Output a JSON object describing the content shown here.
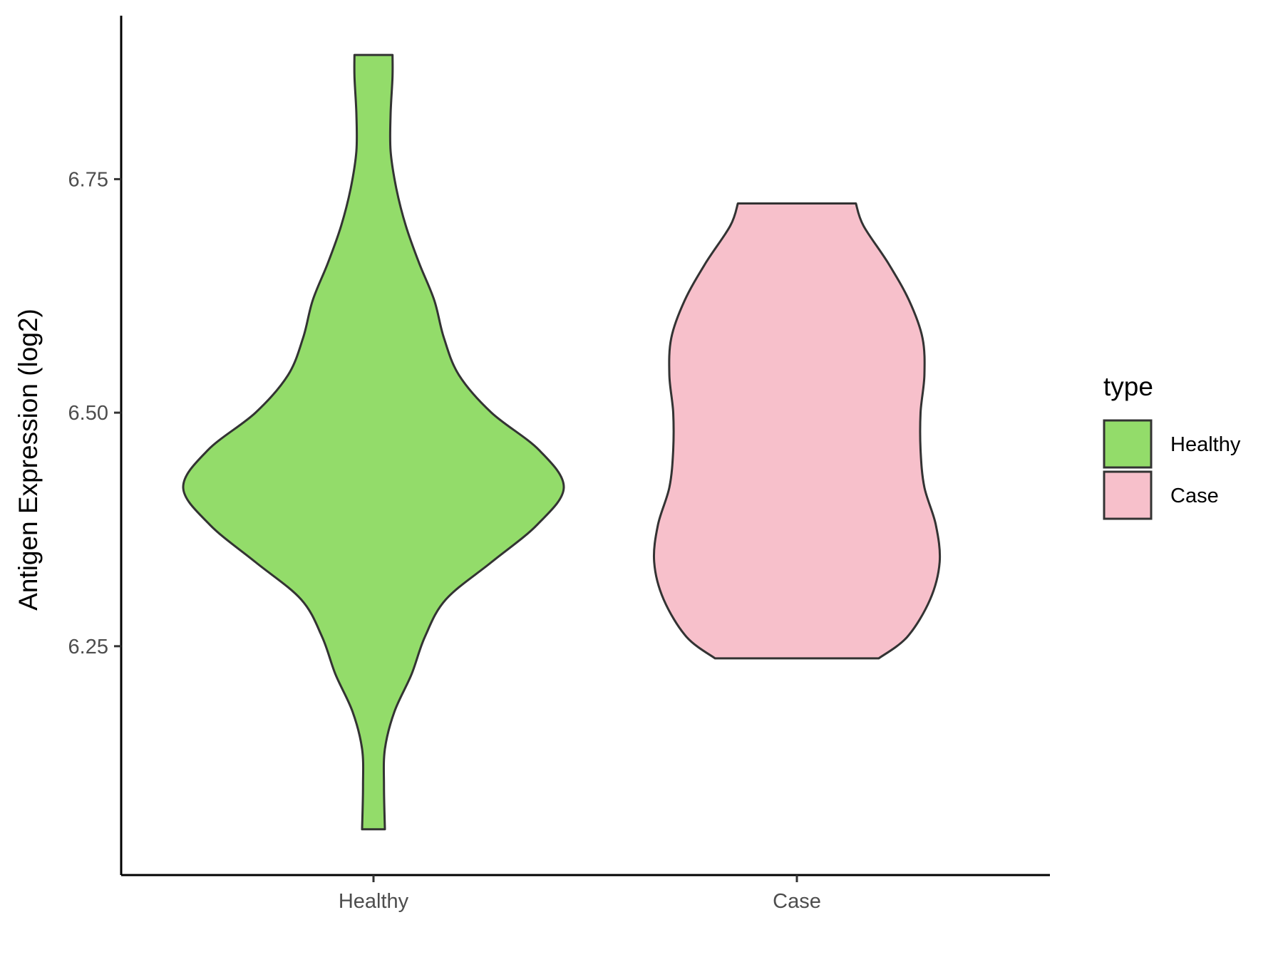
{
  "chart_data": {
    "type": "violin",
    "title": "",
    "xlabel": "",
    "ylabel": "Antigen Expression (log2)",
    "categories": [
      "Healthy",
      "Case"
    ],
    "ylim": [
      6.005,
      6.925
    ],
    "y_ticks": [
      6.25,
      6.5,
      6.75
    ],
    "y_tick_labels": [
      "6.25",
      "6.50",
      "6.75"
    ],
    "grid": false,
    "legend": {
      "title": "type",
      "placement": "right",
      "entries": [
        "Healthy",
        "Case"
      ]
    },
    "series": [
      {
        "name": "Healthy",
        "color": "#93dc6a",
        "min": 6.054,
        "max": 6.883,
        "density": [
          [
            6.054,
            0.06
          ],
          [
            6.1,
            0.055
          ],
          [
            6.14,
            0.06
          ],
          [
            6.18,
            0.11
          ],
          [
            6.22,
            0.2
          ],
          [
            6.26,
            0.27
          ],
          [
            6.3,
            0.38
          ],
          [
            6.34,
            0.62
          ],
          [
            6.38,
            0.86
          ],
          [
            6.42,
            1.0
          ],
          [
            6.46,
            0.87
          ],
          [
            6.5,
            0.62
          ],
          [
            6.54,
            0.45
          ],
          [
            6.58,
            0.37
          ],
          [
            6.62,
            0.32
          ],
          [
            6.66,
            0.24
          ],
          [
            6.7,
            0.17
          ],
          [
            6.74,
            0.12
          ],
          [
            6.78,
            0.09
          ],
          [
            6.82,
            0.09
          ],
          [
            6.86,
            0.1
          ],
          [
            6.883,
            0.1
          ]
        ]
      },
      {
        "name": "Case",
        "color": "#f7c0cb",
        "min": 6.237,
        "max": 6.724,
        "density": [
          [
            6.237,
            0.43
          ],
          [
            6.26,
            0.58
          ],
          [
            6.3,
            0.7
          ],
          [
            6.34,
            0.75
          ],
          [
            6.38,
            0.73
          ],
          [
            6.42,
            0.67
          ],
          [
            6.46,
            0.65
          ],
          [
            6.5,
            0.65
          ],
          [
            6.54,
            0.67
          ],
          [
            6.58,
            0.66
          ],
          [
            6.62,
            0.59
          ],
          [
            6.66,
            0.48
          ],
          [
            6.7,
            0.35
          ],
          [
            6.724,
            0.31
          ]
        ]
      }
    ]
  }
}
